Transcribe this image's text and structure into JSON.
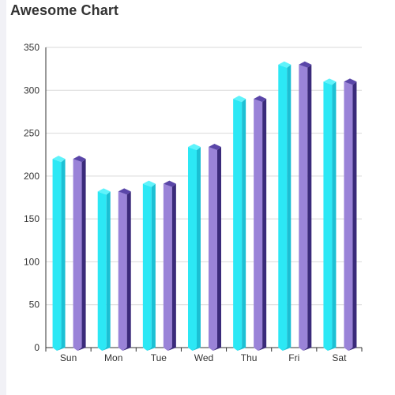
{
  "page": {
    "title": "Awesome Chart"
  },
  "chart_data": {
    "type": "bar",
    "title": "Awesome Chart",
    "categories": [
      "Sun",
      "Mon",
      "Tue",
      "Wed",
      "Thu",
      "Fri",
      "Sat"
    ],
    "series": [
      {
        "values": [
          220,
          182,
          191,
          234,
          290,
          330,
          310
        ]
      },
      {
        "values": [
          220,
          182,
          191,
          234,
          290,
          330,
          310
        ]
      }
    ],
    "ylim": [
      0,
      350
    ],
    "yticks": [
      0,
      50,
      100,
      150,
      200,
      250,
      300,
      350
    ],
    "grid": true,
    "legend": "none",
    "bar_style": "3d-cylinder",
    "colors": {
      "series_1_front": "#2ce8f5",
      "series_1_side": "#1cc0d4",
      "series_1_top": "#5ff3fb",
      "series_2_front": "#9a83d8",
      "series_2_side": "#3a2a7a",
      "series_2_top": "#5a46a8",
      "grid": "#d9d9d9",
      "axis": "#333333"
    }
  }
}
